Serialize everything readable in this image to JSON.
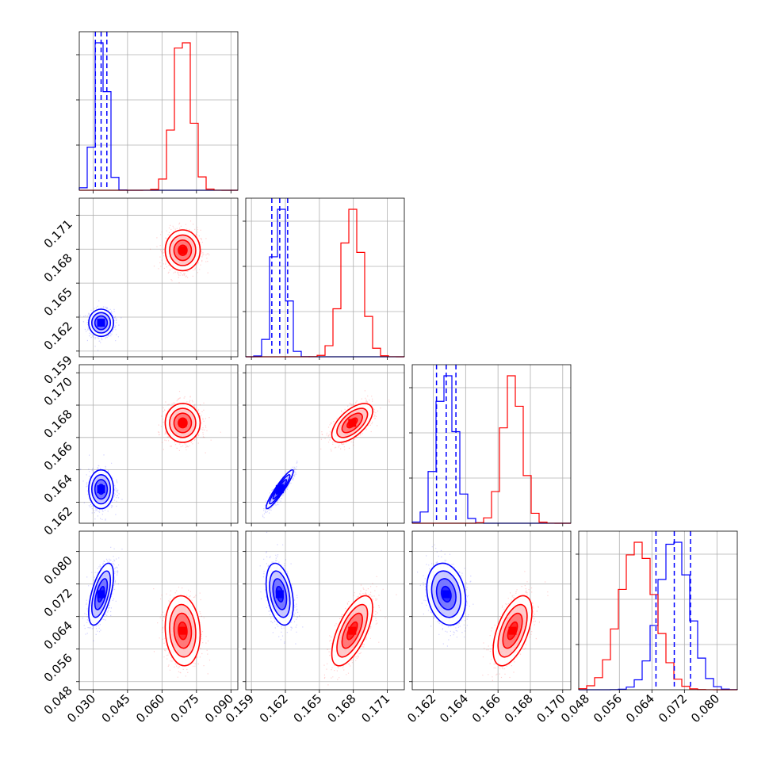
{
  "chart_data": {
    "type": "corner",
    "grid": true,
    "title": "",
    "parameters": [
      "",
      "",
      "",
      ""
    ],
    "colors": {
      "series_a": "#0000ff",
      "series_b": "#ff0000",
      "quantile_line": "#0000ff"
    },
    "ranges": [
      [
        0.024,
        0.093
      ],
      [
        0.1585,
        0.1725
      ],
      [
        0.1607,
        0.1705
      ],
      [
        0.046,
        0.085
      ]
    ],
    "ticks": [
      [
        "0.030",
        "0.045",
        "0.060",
        "0.075",
        "0.090"
      ],
      [
        "0.159",
        "0.162",
        "0.165",
        "0.168",
        "0.171"
      ],
      [
        "0.162",
        "0.164",
        "0.166",
        "0.168",
        "0.170"
      ],
      [
        "0.048",
        "0.056",
        "0.064",
        "0.072",
        "0.080"
      ]
    ],
    "series": [
      {
        "color": "#0000ff",
        "means": [
          0.0335,
          0.1615,
          0.1628,
          0.0695
        ],
        "sigmas": [
          0.0027,
          0.0006,
          0.0006,
          0.0038
        ],
        "correlations": {
          "1-0": 0.0,
          "2-0": 0.0,
          "2-1": 0.93,
          "3-0": 0.6,
          "3-1": -0.35,
          "3-2": -0.2
        },
        "quantiles": [
          [
            0.031,
            0.0335,
            0.036
          ],
          [
            0.1608,
            0.1615,
            0.1622
          ],
          [
            0.1622,
            0.1628,
            0.1634
          ],
          [
            0.065,
            0.0695,
            0.0735
          ]
        ]
      },
      {
        "color": "#ff0000",
        "means": [
          0.069,
          0.1679,
          0.1669,
          0.0605
        ],
        "sigmas": [
          0.0038,
          0.0009,
          0.0006,
          0.0043
        ],
        "correlations": {
          "1-0": 0.0,
          "2-0": 0.0,
          "2-1": 0.6,
          "3-0": -0.1,
          "3-1": 0.65,
          "3-2": 0.55
        }
      }
    ]
  }
}
